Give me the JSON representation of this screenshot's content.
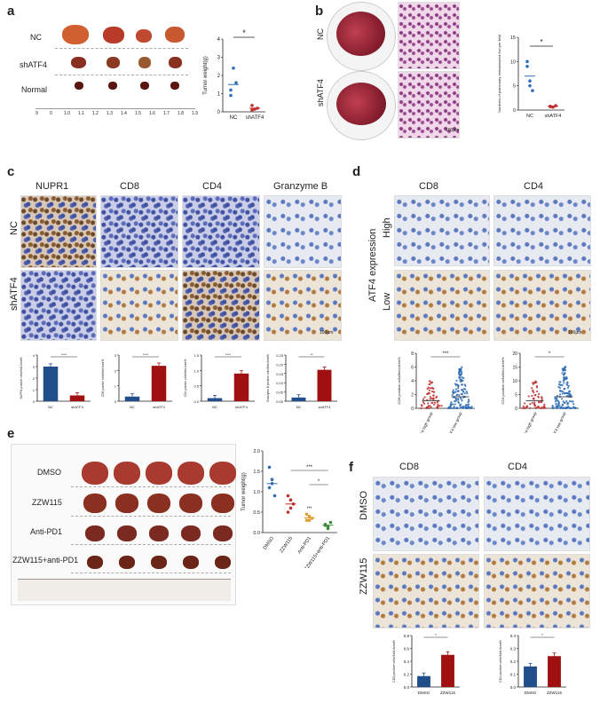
{
  "panel_labels": {
    "a": "a",
    "b": "b",
    "c": "c",
    "d": "d",
    "e": "e",
    "f": "f"
  },
  "a": {
    "rows": [
      "NC",
      "shATF4",
      "Normal"
    ],
    "ruler": [
      "9",
      "0",
      "1.0",
      "1.1",
      "1.2",
      "1.3",
      "1.4",
      "1.5",
      "1.6",
      "1.7",
      "1.8",
      "1.9"
    ]
  },
  "b": {
    "rows": [
      "NC",
      "shATF4"
    ],
    "scale": "100μm"
  },
  "c": {
    "cols": [
      "NUPR1",
      "CD8",
      "CD4",
      "Granzyme B"
    ],
    "rows": [
      "NC",
      "shATF4"
    ],
    "scale": "100μm"
  },
  "d": {
    "cols": [
      "CD8",
      "CD4"
    ],
    "rows": [
      "High",
      "Low"
    ],
    "side_label": "ATF4 expression",
    "scale": "100μm"
  },
  "e": {
    "rows": [
      "DMSO",
      "ZZW115",
      "Anti-PD1",
      "ZZW115+anti-PD1"
    ]
  },
  "f": {
    "cols": [
      "CD8",
      "CD4"
    ],
    "rows": [
      "DMSO",
      "ZZW115"
    ]
  },
  "chart_data": [
    {
      "id": "a",
      "type": "scatter",
      "ylabel": "Tumor weight(g)",
      "categories": [
        "NC",
        "shATF4"
      ],
      "ylim": [
        0,
        4
      ],
      "yticks": [
        "0",
        "1",
        "2",
        "3",
        "4"
      ],
      "points": [
        [
          1.2,
          2.4,
          1.6,
          0.9
        ],
        [
          0.35,
          0.15,
          0.2,
          0.1
        ]
      ],
      "means": [
        1.5,
        0.2
      ],
      "colors": [
        "#2f6db5",
        "#c03030"
      ],
      "sig": "*"
    },
    {
      "id": "b",
      "type": "scatter",
      "ylabel": "Numbers of pulmonary metastasized foci per field",
      "categories": [
        "NC",
        "shATF4"
      ],
      "ylim": [
        0,
        15
      ],
      "yticks": [
        "0",
        "5",
        "10",
        "15"
      ],
      "points": [
        [
          9,
          5,
          4,
          10,
          6
        ],
        [
          0.8,
          0.6,
          0.9,
          0.7
        ]
      ],
      "means": [
        7,
        0.8
      ],
      "colors": [
        "#2f6db5",
        "#c03030"
      ],
      "sig": "*"
    },
    {
      "id": "c1",
      "type": "bar",
      "ylabel": "NUPR1 positive cells/field Area%",
      "categories": [
        "NC",
        "shATF4"
      ],
      "values": [
        3.0,
        0.5
      ],
      "ylim": [
        0,
        4
      ],
      "yticks": [
        "0",
        "1",
        "2",
        "3",
        "4"
      ],
      "colors": [
        "#1f4e8a",
        "#a01010"
      ],
      "sig": "****"
    },
    {
      "id": "c2",
      "type": "bar",
      "ylabel": "CD8 positive cells/field Area%",
      "categories": [
        "NC",
        "shATF4"
      ],
      "values": [
        0.3,
        2.3
      ],
      "ylim": [
        0,
        3
      ],
      "yticks": [
        "0",
        "1",
        "2",
        "3"
      ],
      "colors": [
        "#1f4e8a",
        "#a01010"
      ],
      "sig": "****"
    },
    {
      "id": "c3",
      "type": "bar",
      "ylabel": "CD4 positive cells/field Area%",
      "categories": [
        "NC",
        "shATF4"
      ],
      "values": [
        0.1,
        0.9
      ],
      "ylim": [
        0,
        1.5
      ],
      "yticks": [
        "0.0",
        "0.5",
        "1.0",
        "1.5"
      ],
      "colors": [
        "#1f4e8a",
        "#a01010"
      ],
      "sig": "****"
    },
    {
      "id": "c4",
      "type": "bar",
      "ylabel": "Granzyme B positive cells/field Area%",
      "categories": [
        "NC",
        "shATF4"
      ],
      "values": [
        0.02,
        0.17
      ],
      "ylim": [
        0,
        0.25
      ],
      "yticks": [
        "0.00",
        "0.05",
        "0.10",
        "0.15",
        "0.20",
        "0.25"
      ],
      "colors": [
        "#1f4e8a",
        "#a01010"
      ],
      "sig": "**"
    },
    {
      "id": "d1",
      "type": "scatter",
      "ylabel": "CD8 positive cells/field Area%",
      "categories": [
        "ATF4 high group",
        "ATF4 low group"
      ],
      "ylim": [
        0,
        8
      ],
      "yticks": [
        "0",
        "2",
        "4",
        "6",
        "8"
      ],
      "colors": [
        "#c03030",
        "#2f6db5"
      ],
      "sig": "***"
    },
    {
      "id": "d2",
      "type": "scatter",
      "ylabel": "CD4 positive cells/field Area%",
      "categories": [
        "ATF4 high group",
        "ATF4 low group"
      ],
      "ylim": [
        0,
        20
      ],
      "yticks": [
        "0",
        "5",
        "10",
        "15",
        "20"
      ],
      "colors": [
        "#c03030",
        "#2f6db5"
      ],
      "sig": "*"
    },
    {
      "id": "e",
      "type": "scatter",
      "ylabel": "Tumor weight(g)",
      "categories": [
        "DMSO",
        "ZZW115",
        "Anti-PD1",
        "ZZW115+anti-PD1"
      ],
      "ylim": [
        0,
        2.0
      ],
      "yticks": [
        "0.0",
        "0.5",
        "1.0",
        "1.5",
        "2.0"
      ],
      "points": [
        [
          1.6,
          1.2,
          0.9,
          1.1,
          1.3
        ],
        [
          0.9,
          0.6,
          0.7,
          0.5,
          0.8
        ],
        [
          0.3,
          0.4,
          0.35,
          0.45,
          0.3
        ],
        [
          0.2,
          0.15,
          0.25,
          0.18,
          0.1
        ]
      ],
      "means": [
        1.2,
        0.7,
        0.36,
        0.18
      ],
      "colors": [
        "#2f6db5",
        "#c03030",
        "#e0a030",
        "#3a8a3a"
      ],
      "sig": [
        "***",
        "*"
      ],
      "annot": "***"
    },
    {
      "id": "f1",
      "type": "bar",
      "ylabel": "CD8 positive cells/field Area%",
      "categories": [
        "DMSO",
        "ZZW115"
      ],
      "values": [
        0.17,
        0.5
      ],
      "ylim": [
        0,
        0.8
      ],
      "yticks": [
        "0.0",
        "0.2",
        "0.4",
        "0.6",
        "0.8"
      ],
      "colors": [
        "#1f4e8a",
        "#a01010"
      ],
      "sig": "*"
    },
    {
      "id": "f2",
      "type": "bar",
      "ylabel": "CD4 positive cells/field Area%",
      "categories": [
        "DMSO",
        "ZZW115"
      ],
      "values": [
        0.16,
        0.24
      ],
      "ylim": [
        0,
        0.4
      ],
      "yticks": [
        "0.0",
        "0.1",
        "0.2",
        "0.3",
        "0.4"
      ],
      "colors": [
        "#1f4e8a",
        "#a01010"
      ],
      "sig": "*"
    }
  ]
}
